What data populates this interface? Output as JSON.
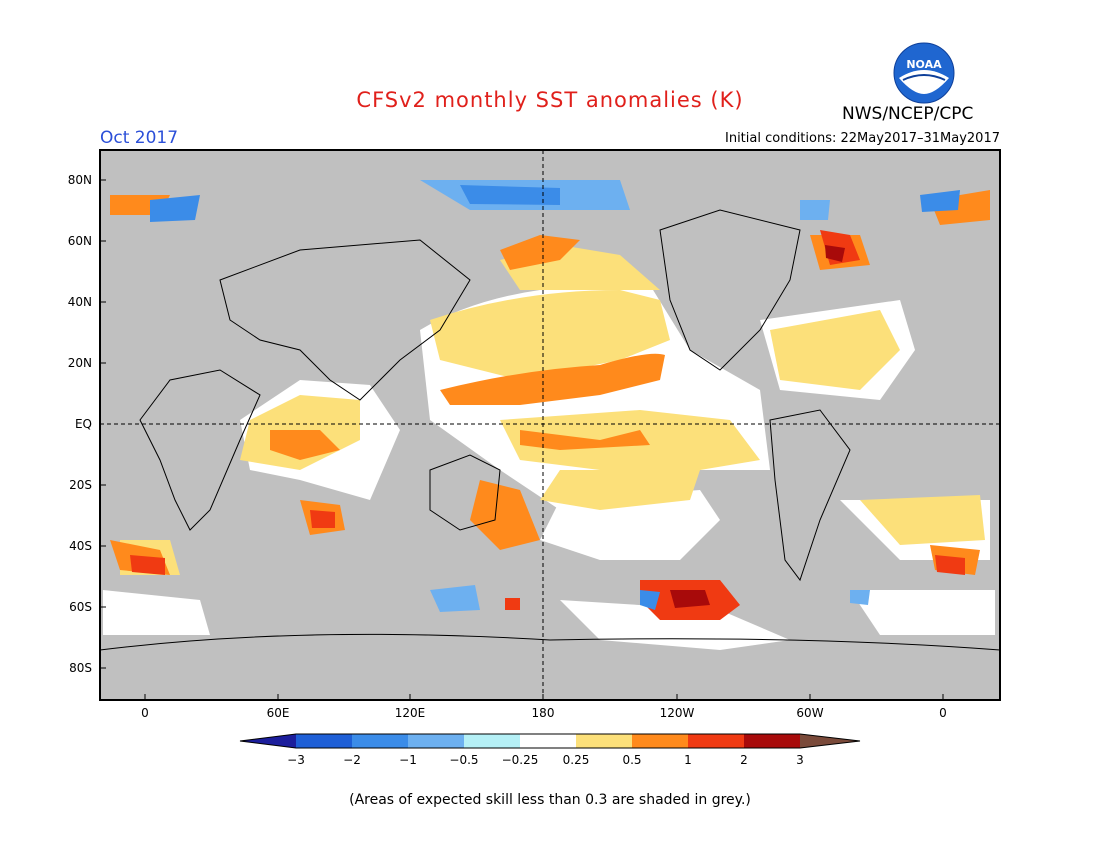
{
  "header": {
    "title": "CFSv2 monthly SST anomalies (K)",
    "month": "Oct 2017",
    "agency": "NWS/NCEP/CPC",
    "logo_text": "NOAA",
    "initial_conditions": "Initial conditions: 22May2017–31May2017"
  },
  "map": {
    "lat_labels": [
      "80N",
      "60N",
      "40N",
      "20N",
      "EQ",
      "20S",
      "40S",
      "60S",
      "80S"
    ],
    "lon_labels": [
      "0",
      "60E",
      "120E",
      "180",
      "120W",
      "60W",
      "0"
    ],
    "land_color": "#c0c0c0",
    "ocean_color": "#ffffff",
    "skill_mask_color": "#c0c0c0"
  },
  "colorbar": {
    "tick_labels": [
      "−3",
      "−2",
      "−1",
      "−0.5",
      "−0.25",
      "0.25",
      "0.5",
      "1",
      "2",
      "3"
    ],
    "colors": [
      "#1c1e9c",
      "#1e5fd6",
      "#3b8ce8",
      "#6db0f0",
      "#b5f0f6",
      "#ffffff",
      "#fce07a",
      "#ff8a1c",
      "#f03a12",
      "#a80a0a",
      "#7a4a3a"
    ]
  },
  "footer": {
    "note": "(Areas of expected skill less than 0.3 are shaded in grey.)"
  }
}
